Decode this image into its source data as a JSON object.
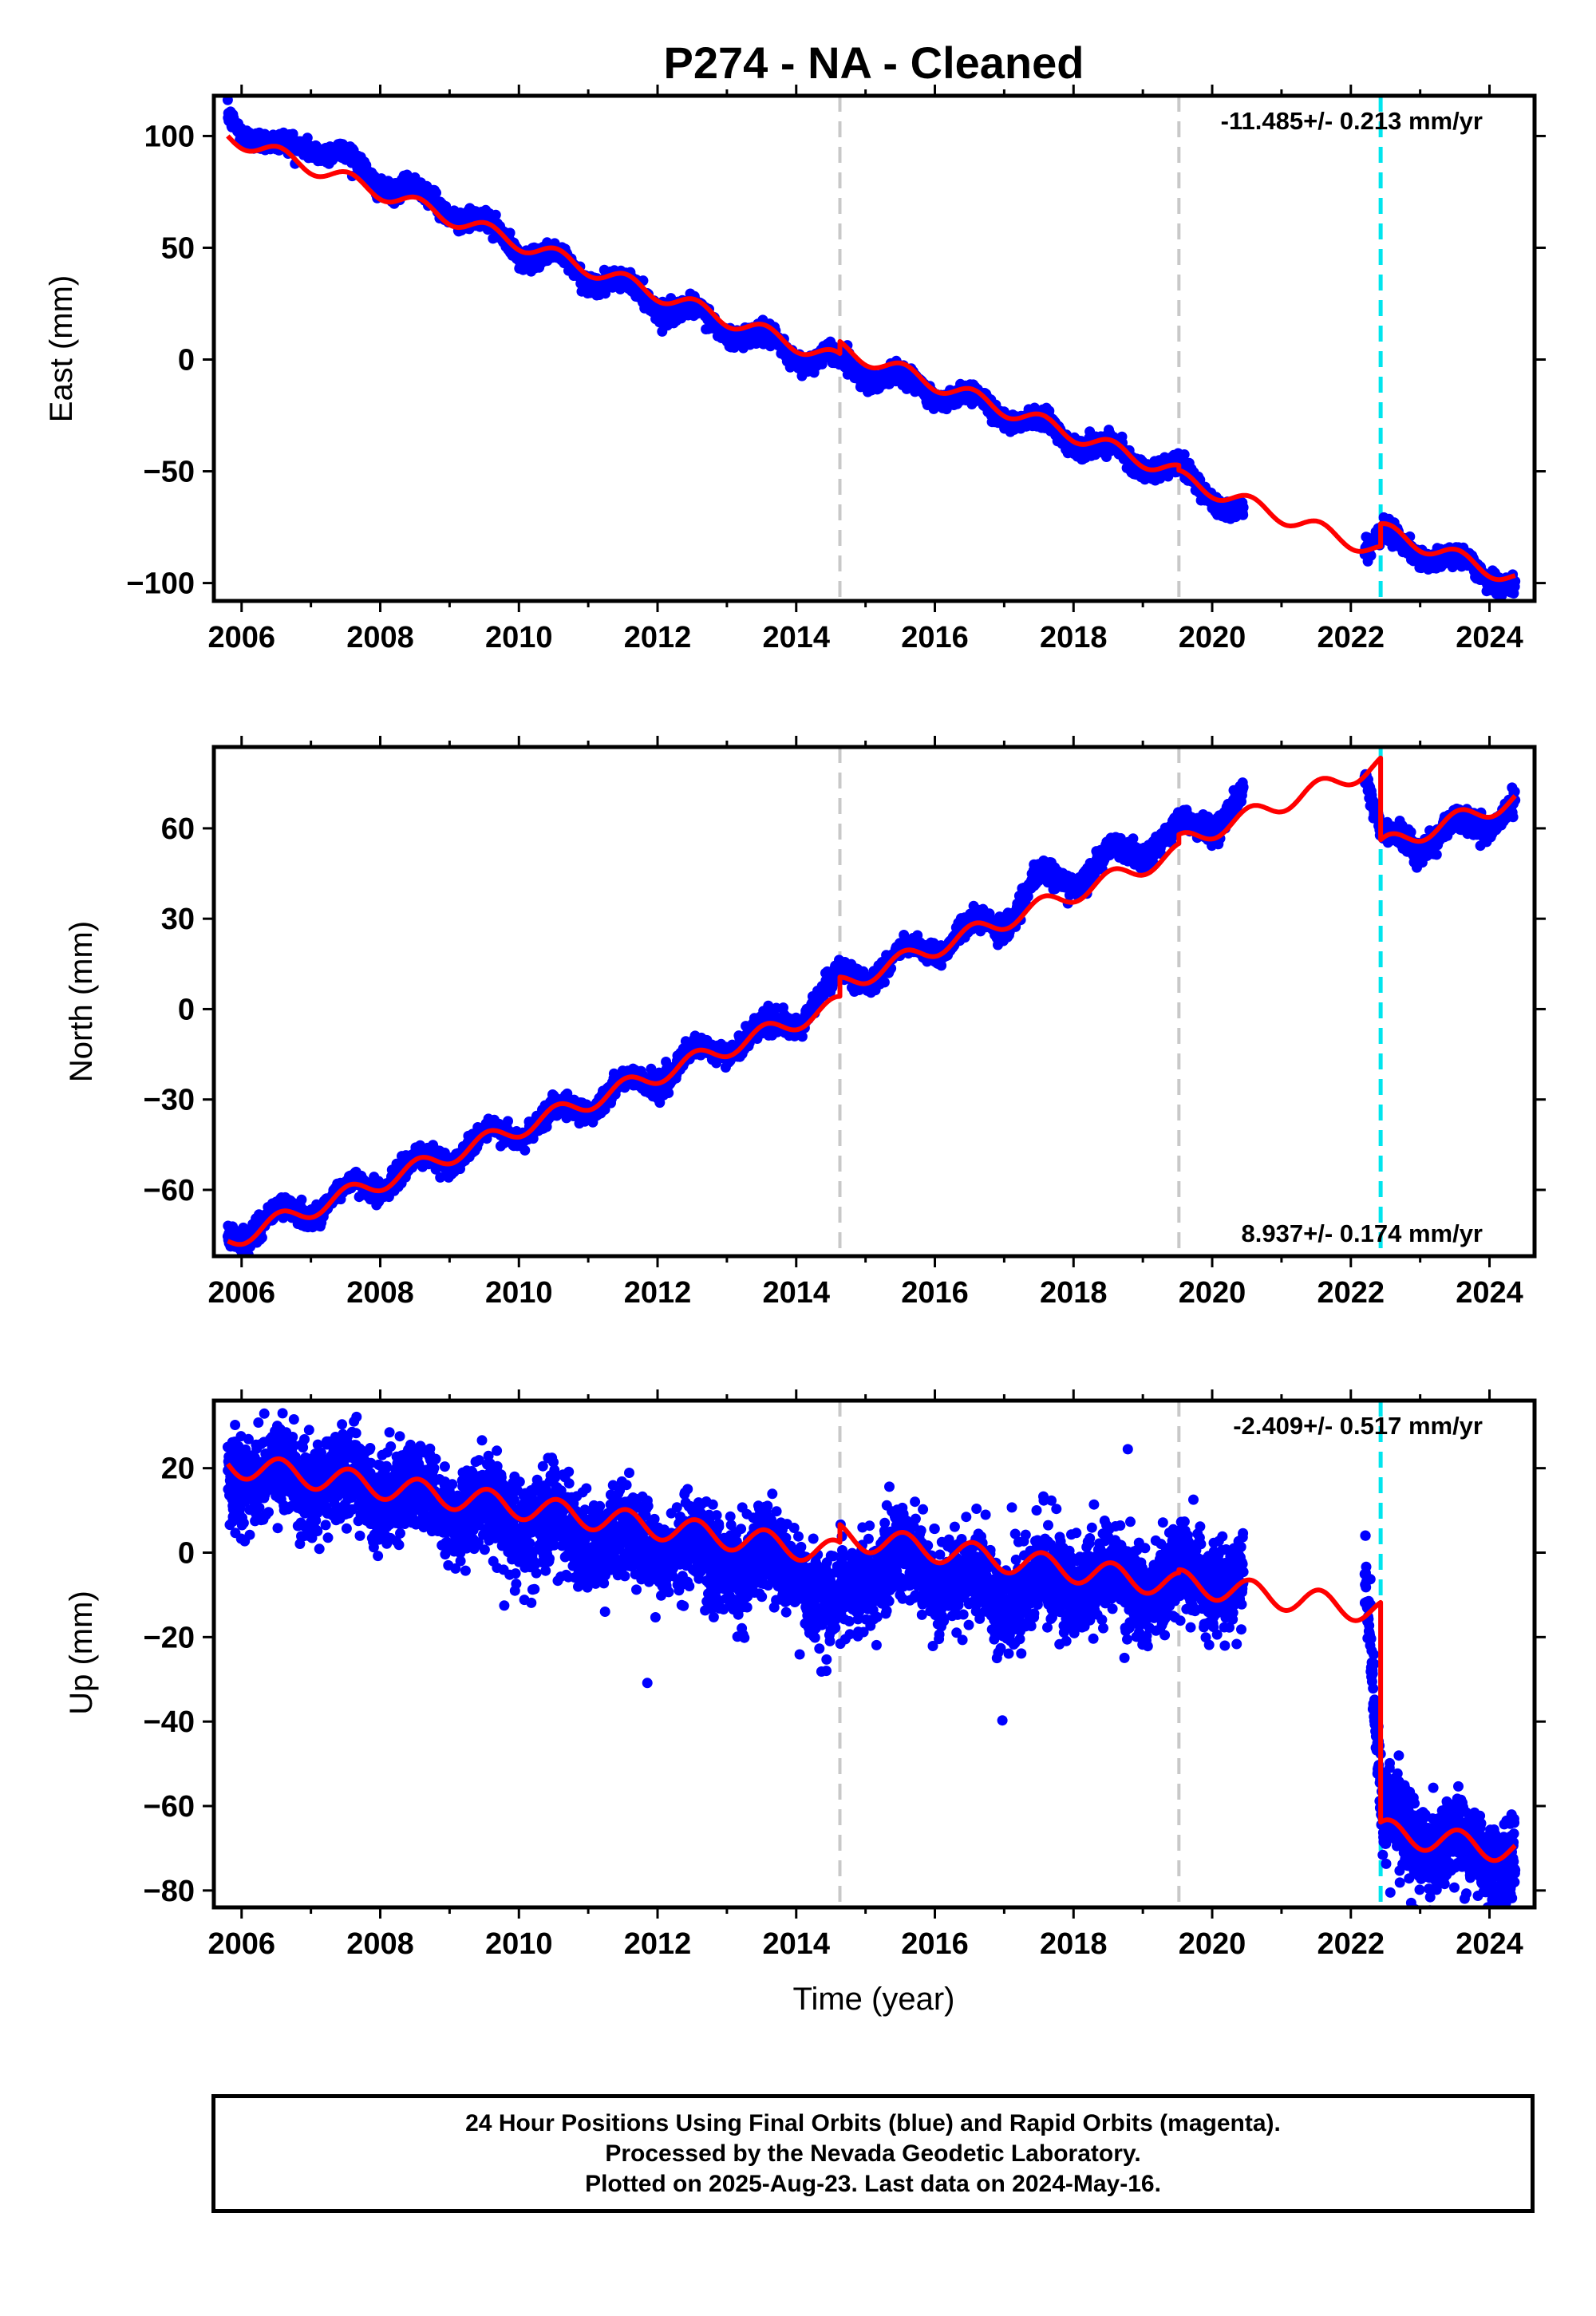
{
  "title": "P274  - NA - Cleaned",
  "xlabel": "Time (year)",
  "colors": {
    "data": "#0000ff",
    "model": "#ff0000",
    "event_gray": "#c8c8c8",
    "event_cyan": "#00e5ee"
  },
  "footer": {
    "line1": "24 Hour Positions Using Final Orbits (blue) and Rapid Orbits (magenta).",
    "line2": "Processed by the Nevada Geodetic Laboratory.",
    "line3": "Plotted on 2025-Aug-23. Last data on 2024-May-16."
  },
  "chart_data": [
    {
      "type": "scatter",
      "component": "East",
      "ylabel": "East (mm)",
      "rate_text": "-11.485+/- 0.213 mm/yr",
      "rate_position": "top-right",
      "xlim": [
        2005.6,
        2024.65
      ],
      "ylim": [
        -108,
        118
      ],
      "x_ticks": [
        2006,
        2008,
        2010,
        2012,
        2014,
        2016,
        2018,
        2020,
        2022,
        2024
      ],
      "y_ticks": [
        -100,
        -50,
        0,
        50,
        100
      ],
      "y_tick_labels": [
        "−100",
        "−50",
        "0",
        "50",
        "100"
      ],
      "event_lines": [
        {
          "x": 2014.63,
          "color": "gray"
        },
        {
          "x": 2019.52,
          "color": "gray"
        },
        {
          "x": 2022.43,
          "color": "cyan"
        }
      ],
      "data_segments": [
        {
          "x_start": 2005.8,
          "x_end": 2020.45
        },
        {
          "x_start": 2022.2,
          "x_end": 2024.37
        }
      ],
      "series": [
        {
          "name": "24 Hour Positions (Final Orbits)",
          "style": "points",
          "x": [
            2005.8,
            2006.5,
            2007.0,
            2008.0,
            2009.0,
            2010.0,
            2011.0,
            2012.0,
            2013.0,
            2014.0,
            2014.65,
            2015.0,
            2016.0,
            2017.0,
            2018.0,
            2019.0,
            2019.6,
            2020.0,
            2020.45,
            2022.2,
            2022.5,
            2023.0,
            2023.5,
            2024.0,
            2024.37
          ],
          "y": [
            110,
            93,
            98,
            80,
            68,
            50,
            38,
            26,
            14,
            3,
            -2,
            -5,
            -14,
            -23,
            -35,
            -46,
            -52,
            -60,
            -70,
            -83,
            -80,
            -86,
            -91,
            -95,
            -102
          ]
        },
        {
          "name": "Model",
          "style": "line",
          "x": [
            2005.8,
            2014.63,
            2019.52,
            2022.43,
            2024.37
          ],
          "y": [
            100,
            0,
            -56,
            -92,
            -103
          ],
          "intercepts": [
            100,
            5,
            -53,
            -76
          ],
          "rates": [
            -11.37,
            -11.4,
            -11.4,
            -11.4
          ],
          "annual_amplitude": 3.5,
          "offset_after_event_3": 10
        }
      ]
    },
    {
      "type": "scatter",
      "component": "North",
      "ylabel": "North (mm)",
      "rate_text": "8.937+/- 0.174 mm/yr",
      "rate_position": "bottom-right",
      "xlim": [
        2005.6,
        2024.65
      ],
      "ylim": [
        -82,
        87
      ],
      "x_ticks": [
        2006,
        2008,
        2010,
        2012,
        2014,
        2016,
        2018,
        2020,
        2022,
        2024
      ],
      "y_ticks": [
        -60,
        -30,
        0,
        30,
        60
      ],
      "y_tick_labels": [
        "−60",
        "−30",
        "0",
        "30",
        "60"
      ],
      "event_lines": [
        {
          "x": 2014.63,
          "color": "gray"
        },
        {
          "x": 2019.52,
          "color": "gray"
        },
        {
          "x": 2022.43,
          "color": "cyan"
        }
      ],
      "data_segments": [
        {
          "x_start": 2005.8,
          "x_end": 2020.45
        },
        {
          "x_start": 2022.2,
          "x_end": 2024.37
        }
      ],
      "series": [
        {
          "name": "24 Hour Positions (Final Orbits)",
          "style": "points",
          "x": [
            2005.8,
            2007.0,
            2008.0,
            2009.0,
            2010.0,
            2011.0,
            2012.0,
            2013.0,
            2014.0,
            2014.65,
            2015.0,
            2016.0,
            2017.0,
            2017.5,
            2018.0,
            2019.0,
            2020.0,
            2020.45,
            2022.2,
            2022.45,
            2023.0,
            2024.0,
            2024.37
          ],
          "y": [
            -75,
            -66,
            -57,
            -48,
            -40,
            -31,
            -22,
            -12,
            -3,
            10,
            12,
            21,
            30,
            42,
            44,
            54,
            63,
            70,
            80,
            55,
            56,
            63,
            69
          ]
        },
        {
          "name": "Model",
          "style": "line",
          "x": [
            2005.8,
            2014.63,
            2019.52,
            2022.43,
            2024.37
          ],
          "y": [
            -77,
            6,
            59,
            84,
            69
          ],
          "intercepts": [
            -77,
            8,
            55,
            54
          ],
          "rates": [
            8.9,
            9.0,
            9.0,
            8.0
          ],
          "annual_amplitude": 3.0,
          "offset_after_event_3": -27
        }
      ]
    },
    {
      "type": "scatter",
      "component": "Up",
      "ylabel": "Up (mm)",
      "rate_text": "-2.409+/- 0.517 mm/yr",
      "rate_position": "top-right",
      "xlim": [
        2005.6,
        2024.65
      ],
      "ylim": [
        -84,
        36
      ],
      "x_ticks": [
        2006,
        2008,
        2010,
        2012,
        2014,
        2016,
        2018,
        2020,
        2022,
        2024
      ],
      "y_ticks": [
        -80,
        -60,
        -40,
        -20,
        0,
        20
      ],
      "y_tick_labels": [
        "−80",
        "−60",
        "−40",
        "−20",
        "0",
        "20"
      ],
      "event_lines": [
        {
          "x": 2014.63,
          "color": "gray"
        },
        {
          "x": 2019.52,
          "color": "gray"
        },
        {
          "x": 2022.43,
          "color": "cyan"
        }
      ],
      "data_segments": [
        {
          "x_start": 2005.8,
          "x_end": 2020.45
        },
        {
          "x_start": 2022.2,
          "x_end": 2024.37
        }
      ],
      "series": [
        {
          "name": "24 Hour Positions (Final Orbits)",
          "style": "points",
          "x": [
            2005.8,
            2007.0,
            2008.0,
            2009.0,
            2010.0,
            2011.0,
            2012.0,
            2013.0,
            2014.0,
            2014.5,
            2015.0,
            2016.0,
            2017.0,
            2018.0,
            2019.0,
            2020.0,
            2020.45,
            2022.2,
            2022.45,
            2023.0,
            2024.0,
            2024.37
          ],
          "y": [
            20,
            17,
            15,
            12,
            8,
            4,
            2,
            -2,
            -3,
            -15,
            -3,
            -4,
            -10,
            -6,
            -8,
            -5,
            -6,
            -2,
            -64,
            -67,
            -72,
            -72
          ]
        },
        {
          "name": "Model",
          "style": "line",
          "x": [
            2005.8,
            2014.63,
            2019.52,
            2022.43,
            2024.37
          ],
          "y": [
            21,
            1,
            -7,
            -12,
            -73
          ],
          "intercepts": [
            21,
            4,
            -7,
            -66
          ],
          "rates": [
            -2.4,
            -2.4,
            -2.4,
            -2.4
          ],
          "annual_amplitude": 3.0,
          "offset_after_event_3": -56
        }
      ]
    }
  ]
}
